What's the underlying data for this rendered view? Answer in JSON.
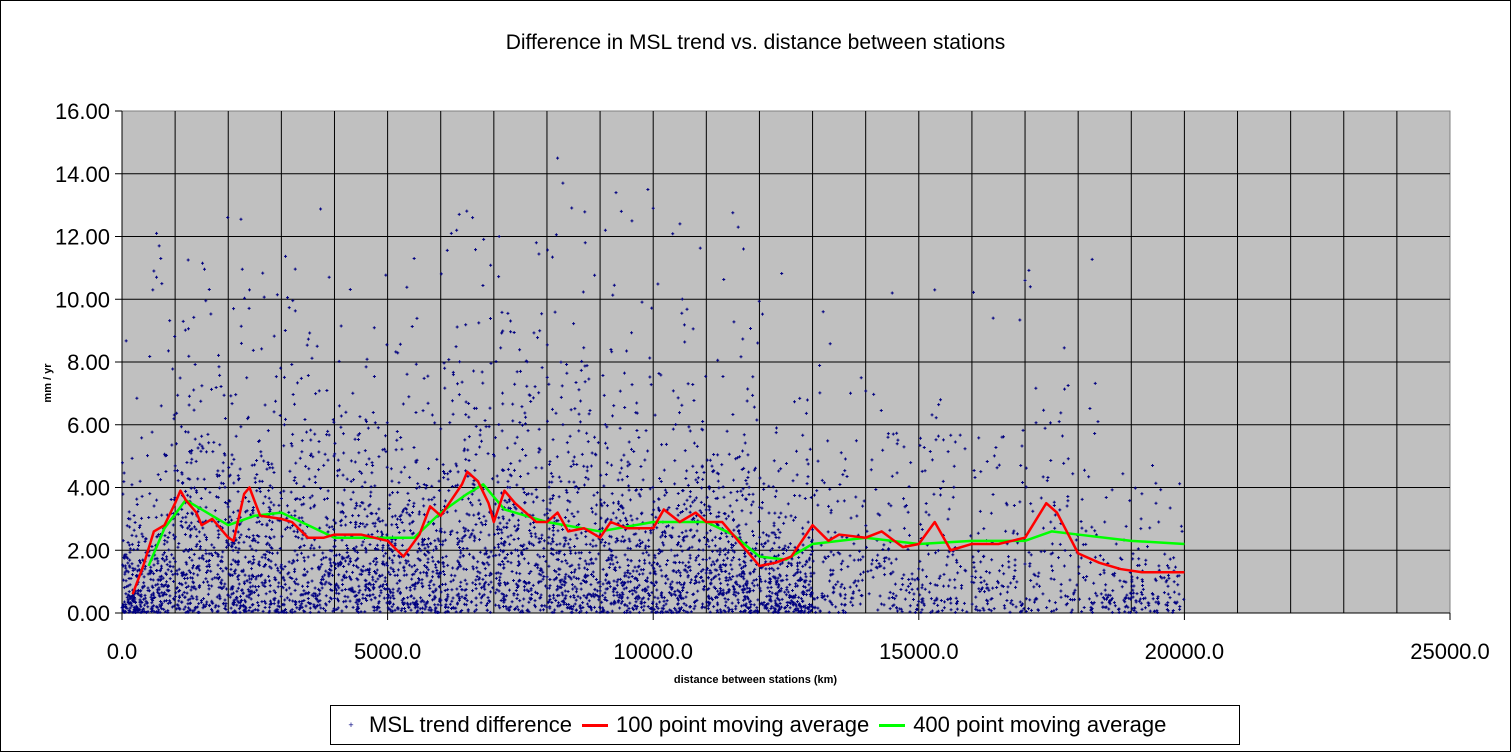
{
  "chart_data": {
    "type": "scatter",
    "title": "Difference in MSL trend vs. distance between stations",
    "xlabel": "distance between stations (km)",
    "ylabel": "mm / yr",
    "xlim": [
      0,
      25000
    ],
    "ylim": [
      0,
      16
    ],
    "x_ticks": [
      "0.0",
      "5000.0",
      "10000.0",
      "15000.0",
      "20000.0",
      "25000.0"
    ],
    "x_tick_values": [
      0,
      5000,
      10000,
      15000,
      20000,
      25000
    ],
    "y_ticks": [
      "0.00",
      "2.00",
      "4.00",
      "6.00",
      "8.00",
      "10.00",
      "12.00",
      "14.00",
      "16.00"
    ],
    "y_tick_values": [
      0,
      2,
      4,
      6,
      8,
      10,
      12,
      14,
      16
    ],
    "x_grid_step": 1000,
    "y_grid_step": 2,
    "grid": true,
    "legend_position": "bottom",
    "colors": {
      "scatter": "#000080",
      "ma100": "#ff0000",
      "ma400": "#00ff00",
      "plot_bg": "#c0c0c0"
    },
    "series": [
      {
        "name": "MSL trend difference",
        "kind": "scatter",
        "note_points": "sample of prominent points; dense cloud concentrated below 4 mm/yr over 0-20000 km",
        "points": [
          [
            650,
            12.1
          ],
          [
            700,
            11.7
          ],
          [
            730,
            11.3
          ],
          [
            600,
            10.9
          ],
          [
            650,
            10.7
          ],
          [
            580,
            10.3
          ],
          [
            750,
            10.5
          ],
          [
            8200,
            14.5
          ],
          [
            8300,
            13.7
          ],
          [
            9300,
            13.4
          ],
          [
            9900,
            13.5
          ],
          [
            9400,
            12.8
          ],
          [
            9100,
            12.2
          ],
          [
            9600,
            12.5
          ],
          [
            10000,
            12.9
          ],
          [
            6600,
            12.6
          ],
          [
            6200,
            12.1
          ],
          [
            6300,
            12.2
          ],
          [
            7100,
            12.0
          ],
          [
            11600,
            12.3
          ],
          [
            11700,
            11.6
          ],
          [
            5500,
            11.3
          ],
          [
            7800,
            11.8
          ],
          [
            3900,
            10.7
          ],
          [
            14500,
            10.2
          ],
          [
            15300,
            10.3
          ],
          [
            17000,
            10.6
          ],
          [
            17100,
            10.4
          ],
          [
            2400,
            10.3
          ],
          [
            2100,
            9.7
          ],
          [
            13200,
            9.6
          ],
          [
            16400,
            9.4
          ],
          [
            19400,
            4.7
          ],
          [
            19200,
            3.8
          ],
          [
            18500,
            2.9
          ],
          [
            19700,
            1.2
          ],
          [
            19900,
            0.6
          ]
        ]
      },
      {
        "name": "100 point moving average",
        "kind": "line",
        "x": [
          200,
          400,
          600,
          800,
          1000,
          1100,
          1200,
          1400,
          1500,
          1700,
          2000,
          2100,
          2300,
          2400,
          2600,
          3000,
          3200,
          3500,
          3800,
          4000,
          4500,
          5000,
          5300,
          5600,
          5800,
          6000,
          6200,
          6400,
          6500,
          6700,
          6900,
          7000,
          7200,
          7400,
          7600,
          7800,
          8000,
          8200,
          8400,
          8700,
          9000,
          9200,
          9500,
          10000,
          10200,
          10500,
          10800,
          11000,
          11300,
          11600,
          12000,
          12300,
          12600,
          13000,
          13300,
          13500,
          14000,
          14300,
          14700,
          15000,
          15300,
          15600,
          16000,
          16500,
          17000,
          17400,
          17600,
          18000,
          18400,
          18800,
          19200,
          20000
        ],
        "y": [
          0.6,
          1.5,
          2.6,
          2.8,
          3.5,
          3.9,
          3.6,
          3.2,
          2.8,
          3.0,
          2.4,
          2.3,
          3.8,
          4.0,
          3.1,
          3.0,
          2.9,
          2.4,
          2.4,
          2.5,
          2.5,
          2.3,
          1.8,
          2.5,
          3.4,
          3.1,
          3.6,
          4.1,
          4.5,
          4.2,
          3.5,
          2.9,
          3.9,
          3.5,
          3.2,
          2.9,
          2.9,
          3.2,
          2.6,
          2.7,
          2.4,
          2.9,
          2.7,
          2.7,
          3.3,
          2.9,
          3.2,
          2.9,
          2.9,
          2.3,
          1.5,
          1.6,
          1.8,
          2.8,
          2.3,
          2.5,
          2.4,
          2.6,
          2.1,
          2.2,
          2.9,
          2.0,
          2.2,
          2.2,
          2.4,
          3.5,
          3.2,
          1.9,
          1.6,
          1.4,
          1.3,
          1.3
        ]
      },
      {
        "name": "400 point moving average",
        "kind": "line",
        "x": [
          500,
          800,
          1200,
          1500,
          2000,
          2500,
          3000,
          3500,
          4000,
          5000,
          5500,
          6000,
          6500,
          6800,
          7200,
          8000,
          9000,
          10000,
          11000,
          11500,
          12000,
          12500,
          13000,
          14000,
          15000,
          16000,
          17000,
          17500,
          18000,
          19000,
          20000
        ],
        "y": [
          1.5,
          2.7,
          3.6,
          3.3,
          2.8,
          3.1,
          3.2,
          2.8,
          2.4,
          2.4,
          2.4,
          3.2,
          3.8,
          4.1,
          3.3,
          2.9,
          2.6,
          2.9,
          2.9,
          2.5,
          1.8,
          1.7,
          2.2,
          2.4,
          2.2,
          2.3,
          2.3,
          2.6,
          2.5,
          2.3,
          2.2
        ]
      }
    ]
  },
  "legend": {
    "items": [
      "MSL trend difference",
      "100 point moving average",
      "400 point moving average"
    ]
  }
}
